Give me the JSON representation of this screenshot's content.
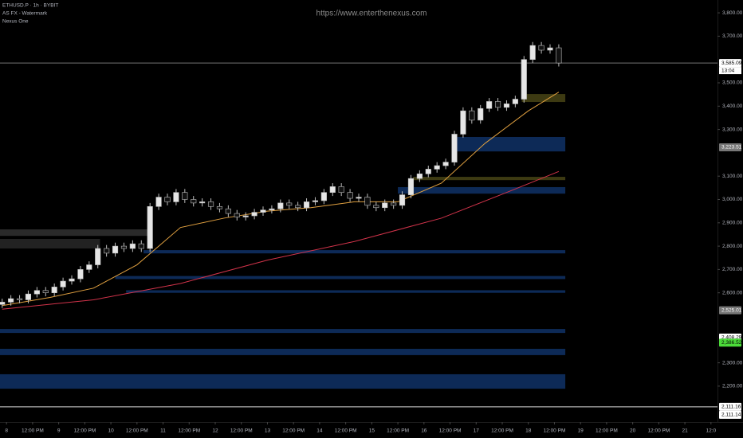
{
  "chart_data": {
    "type": "candlestick",
    "symbol": "ETHUSD.P · 1h · BYBIT",
    "indicators": [
      "AS FX - Watermark",
      "Nexus One"
    ],
    "watermark": "https://www.enterthenexus.com",
    "x": [
      -2,
      2,
      6,
      10,
      14,
      18,
      22,
      26,
      30,
      34,
      38,
      42,
      46,
      50,
      54,
      58,
      62,
      66,
      70,
      74,
      78,
      82,
      86,
      90,
      94,
      98,
      102,
      106,
      110,
      114,
      118,
      122,
      126,
      130,
      134,
      138,
      142,
      146,
      150,
      154,
      158,
      162,
      166,
      170,
      174,
      178,
      182,
      186,
      190,
      194,
      198,
      202,
      206,
      210,
      214,
      218,
      222,
      226,
      230,
      234,
      238,
      242,
      246,
      250,
      254
    ],
    "open": [
      2550,
      2560,
      2575,
      2570,
      2595,
      2610,
      2600,
      2625,
      2650,
      2660,
      2700,
      2720,
      2790,
      2770,
      2800,
      2790,
      2810,
      2790,
      2970,
      3010,
      2990,
      3030,
      3000,
      2985,
      2990,
      2970,
      2960,
      2940,
      2925,
      2930,
      2945,
      2955,
      2960,
      2985,
      2975,
      2965,
      2990,
      2995,
      3030,
      3055,
      3030,
      3005,
      3010,
      2975,
      2965,
      2985,
      2975,
      3020,
      3090,
      3110,
      3130,
      3145,
      3160,
      3280,
      3380,
      3340,
      3390,
      3420,
      3395,
      3410,
      3430,
      3600,
      3660,
      3640,
      3650
    ],
    "high": [
      2575,
      2590,
      2590,
      2610,
      2625,
      2625,
      2640,
      2665,
      2675,
      2715,
      2735,
      2805,
      2805,
      2815,
      2815,
      2825,
      2825,
      2985,
      3025,
      3025,
      3045,
      3045,
      3015,
      3005,
      3005,
      2985,
      2975,
      2955,
      2945,
      2960,
      2970,
      2975,
      3000,
      3000,
      2990,
      3005,
      3010,
      3045,
      3070,
      3070,
      3045,
      3025,
      3025,
      2990,
      3000,
      3000,
      3035,
      3105,
      3125,
      3145,
      3160,
      3175,
      3295,
      3395,
      3395,
      3405,
      3435,
      3435,
      3425,
      3445,
      3615,
      3675,
      3675,
      3665,
      3665
    ],
    "low": [
      2535,
      2545,
      2555,
      2555,
      2580,
      2585,
      2585,
      2610,
      2635,
      2645,
      2685,
      2705,
      2755,
      2755,
      2775,
      2775,
      2775,
      2775,
      2955,
      2975,
      2975,
      2985,
      2970,
      2970,
      2955,
      2945,
      2925,
      2910,
      2910,
      2915,
      2930,
      2940,
      2945,
      2960,
      2950,
      2950,
      2975,
      2980,
      3015,
      3015,
      2990,
      2990,
      2960,
      2950,
      2950,
      2960,
      2960,
      3005,
      3075,
      3095,
      3115,
      3130,
      3145,
      3265,
      3325,
      3325,
      3375,
      3380,
      3380,
      3395,
      3415,
      3585,
      3625,
      3625,
      3570
    ],
    "close": [
      2560,
      2575,
      2570,
      2595,
      2610,
      2600,
      2625,
      2650,
      2660,
      2700,
      2720,
      2790,
      2770,
      2800,
      2790,
      2810,
      2790,
      2970,
      3010,
      2990,
      3030,
      3000,
      2985,
      2990,
      2970,
      2960,
      2940,
      2925,
      2930,
      2945,
      2955,
      2960,
      2985,
      2975,
      2965,
      2990,
      2995,
      3030,
      3055,
      3030,
      3005,
      3010,
      2975,
      2965,
      2985,
      2975,
      3020,
      3090,
      3110,
      3130,
      3145,
      3160,
      3280,
      3380,
      3340,
      3390,
      3420,
      3395,
      3410,
      3430,
      3600,
      3660,
      3640,
      3650,
      3585.09
    ],
    "up_color": "#e6e6e6",
    "down_color": "#111111",
    "xlim": [
      -3,
      327
    ],
    "ylim": [
      2046,
      3855
    ],
    "xticks": [
      {
        "value": 0,
        "label": "8"
      },
      {
        "value": 12,
        "label": "12:00 PM"
      },
      {
        "value": 24,
        "label": "9"
      },
      {
        "value": 36,
        "label": "12:00 PM"
      },
      {
        "value": 48,
        "label": "10"
      },
      {
        "value": 60,
        "label": "12:00 PM"
      },
      {
        "value": 72,
        "label": "11"
      },
      {
        "value": 84,
        "label": "12:00 PM"
      },
      {
        "value": 96,
        "label": "12"
      },
      {
        "value": 108,
        "label": "12:00 PM"
      },
      {
        "value": 120,
        "label": "13"
      },
      {
        "value": 132,
        "label": "12:00 PM"
      },
      {
        "value": 144,
        "label": "14"
      },
      {
        "value": 156,
        "label": "12:00 PM"
      },
      {
        "value": 168,
        "label": "15"
      },
      {
        "value": 180,
        "label": "12:00 PM"
      },
      {
        "value": 192,
        "label": "16"
      },
      {
        "value": 204,
        "label": "12:00 PM"
      },
      {
        "value": 216,
        "label": "17"
      },
      {
        "value": 228,
        "label": "12:00 PM"
      },
      {
        "value": 240,
        "label": "18"
      },
      {
        "value": 252,
        "label": "12:00 PM"
      },
      {
        "value": 264,
        "label": "19"
      },
      {
        "value": 276,
        "label": "12:00 PM"
      },
      {
        "value": 288,
        "label": "20"
      },
      {
        "value": 300,
        "label": "12:00 PM"
      },
      {
        "value": 312,
        "label": "21"
      },
      {
        "value": 324,
        "label": "12:0"
      }
    ],
    "yticks": [
      {
        "value": 3800,
        "label": "3,800.00"
      },
      {
        "value": 3700,
        "label": "3,700.00"
      },
      {
        "value": 3500,
        "label": "3,500.00"
      },
      {
        "value": 3400,
        "label": "3,400.00"
      },
      {
        "value": 3300,
        "label": "3,300.00"
      },
      {
        "value": 3100,
        "label": "3,100.00"
      },
      {
        "value": 3000,
        "label": "3,000.00"
      },
      {
        "value": 2900,
        "label": "2,900.00"
      },
      {
        "value": 2800,
        "label": "2,800.00"
      },
      {
        "value": 2700,
        "label": "2,700.00"
      },
      {
        "value": 2600,
        "label": "2,600.00"
      },
      {
        "value": 2300,
        "label": "2,300.00"
      },
      {
        "value": 2200,
        "label": "2,200.00"
      }
    ],
    "averages": [
      {
        "color": "#e0a040",
        "x": [
          -2,
          20,
          40,
          60,
          80,
          100,
          120,
          140,
          160,
          180,
          200,
          220,
          240,
          254
        ],
        "values": [
          2545,
          2580,
          2620,
          2720,
          2880,
          2920,
          2950,
          2965,
          2990,
          2990,
          3070,
          3240,
          3380,
          3460
        ]
      },
      {
        "color": "#d1334a",
        "x": [
          -2,
          40,
          80,
          120,
          160,
          200,
          230,
          254
        ],
        "values": [
          2530,
          2570,
          2640,
          2740,
          2820,
          2920,
          3030,
          3120
        ]
      }
    ],
    "zones": [
      {
        "low": 2844,
        "high": 2872,
        "start": -3,
        "end": 66,
        "color": "#2a2a2a"
      },
      {
        "low": 2790,
        "high": 2831,
        "start": -3,
        "end": 43,
        "color": "#222222"
      },
      {
        "low": 2769,
        "high": 2783,
        "start": 63,
        "end": 257,
        "color": "#0d2a57"
      },
      {
        "low": 2659,
        "high": 2672,
        "start": 50,
        "end": 257,
        "color": "#0d2a57"
      },
      {
        "low": 2600,
        "high": 2611,
        "start": 55,
        "end": 257,
        "color": "#0d2a57"
      },
      {
        "low": 2428,
        "high": 2445,
        "start": -3,
        "end": 257,
        "color": "#0d2a57"
      },
      {
        "low": 2333,
        "high": 2360,
        "start": -3,
        "end": 257,
        "color": "#0d2a57"
      },
      {
        "low": 2189,
        "high": 2251,
        "start": -3,
        "end": 257,
        "color": "#0d2a57"
      },
      {
        "low": 3206,
        "high": 3268,
        "start": 206,
        "end": 257,
        "color": "#0d2a57"
      },
      {
        "low": 3025,
        "high": 3053,
        "start": 180,
        "end": 257,
        "color": "#0d2a57"
      },
      {
        "low": 3418,
        "high": 3452,
        "start": 237,
        "end": 257,
        "color": "#3d3a12"
      },
      {
        "low": 3083,
        "high": 3097,
        "start": 187,
        "end": 257,
        "color": "#3d3a12"
      }
    ],
    "price_tags": [
      {
        "value": 3585.09,
        "label": "3,585.09",
        "background": "#ffffff",
        "text_color": "#000000",
        "line": true,
        "line_color": "#777777"
      },
      {
        "value": 3223.51,
        "label": "3,223.51",
        "background": "#777777",
        "text_color": "#ffffff",
        "line": false,
        "line_color": "#777777"
      },
      {
        "value": 2525.01,
        "label": "2,525.01",
        "background": "#777777",
        "text_color": "#ffffff",
        "line": false,
        "line_color": "#777777"
      },
      {
        "value": 2408.29,
        "label": "2,408.29",
        "background": "#ffffff",
        "text_color": "#000000",
        "line": false,
        "line_color": "#777777"
      },
      {
        "value": 2386.52,
        "label": "2,386.52",
        "background": "#4cdc3a",
        "text_color": "#000000",
        "line": false,
        "line_color": "#777777"
      },
      {
        "value": 2111.16,
        "label": "2,111.16",
        "background": "#ffffff",
        "text_color": "#000000",
        "line": true,
        "line_color": "#dddddd"
      },
      {
        "value": 2111.14,
        "label": "2,111.14",
        "background": "#ffffff",
        "text_color": "#000000",
        "line": false,
        "line_color": "#dddddd"
      }
    ],
    "countdown": "13:04"
  }
}
